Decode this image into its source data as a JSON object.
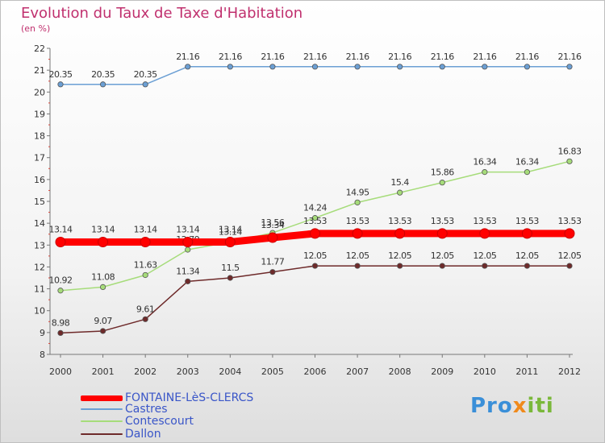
{
  "header": {
    "title": "Evolution du Taux de Taxe d'Habitation",
    "subtitle": "(en %)"
  },
  "chart_data": {
    "type": "line",
    "title": "Evolution du Taux de Taxe d'Habitation",
    "ylabel": "(en %)",
    "xlabel": "",
    "x": [
      "2000",
      "2001",
      "2002",
      "2003",
      "2004",
      "2005",
      "2006",
      "2007",
      "2008",
      "2009",
      "2010",
      "2011",
      "2012"
    ],
    "ylim": [
      8,
      22
    ],
    "yticks": [
      8,
      9,
      10,
      11,
      12,
      13,
      14,
      15,
      16,
      17,
      18,
      19,
      20,
      21,
      22
    ],
    "grid": false,
    "legend_position": "bottom-left",
    "series": [
      {
        "name": "FONTAINE-LèS-CLERCS",
        "color": "#ff0000",
        "values": [
          13.14,
          13.14,
          13.14,
          13.14,
          13.14,
          13.34,
          13.53,
          13.53,
          13.53,
          13.53,
          13.53,
          13.53,
          13.53
        ],
        "labels": [
          "13.14",
          "13.14",
          "13.14",
          "13.14",
          "13.14",
          "13.34",
          "13.53",
          "13.53",
          "13.53",
          "13.53",
          "13.53",
          "13.53",
          "13.53"
        ]
      },
      {
        "name": "Castres",
        "color": "#6b9fd4",
        "values": [
          20.35,
          20.35,
          20.35,
          21.16,
          21.16,
          21.16,
          21.16,
          21.16,
          21.16,
          21.16,
          21.16,
          21.16,
          21.16
        ],
        "labels": [
          "20.35",
          "20.35",
          "20.35",
          "21.16",
          "21.16",
          "21.16",
          "21.16",
          "21.16",
          "21.16",
          "21.16",
          "21.16",
          "21.16",
          "21.16"
        ]
      },
      {
        "name": "Contescourt",
        "color": "#a6dc7a",
        "values": [
          10.92,
          11.08,
          11.63,
          12.79,
          13.14,
          13.56,
          14.24,
          14.95,
          15.4,
          15.86,
          16.34,
          16.34,
          16.83
        ],
        "labels": [
          "10.92",
          "11.08",
          "11.63",
          "12.79",
          "13.14",
          "13.56",
          "14.24",
          "14.95",
          "15.4",
          "15.86",
          "16.34",
          "16.34",
          "16.83"
        ]
      },
      {
        "name": "Dallon",
        "color": "#6e2a2a",
        "values": [
          8.98,
          9.07,
          9.61,
          11.34,
          11.5,
          11.77,
          12.05,
          12.05,
          12.05,
          12.05,
          12.05,
          12.05,
          12.05
        ],
        "labels": [
          "8.98",
          "9.07",
          "9.61",
          "11.34",
          "11.5",
          "11.77",
          "12.05",
          "12.05",
          "12.05",
          "12.05",
          "12.05",
          "12.05",
          "12.05"
        ]
      }
    ]
  },
  "legend": {
    "items": [
      {
        "label": "FONTAINE-LèS-CLERCS",
        "color": "#ff0000",
        "text_color": "#3a56c8"
      },
      {
        "label": "Castres",
        "color": "#6b9fd4",
        "text_color": "#3a56c8"
      },
      {
        "label": "Contescourt",
        "color": "#a6dc7a",
        "text_color": "#3a56c8"
      },
      {
        "label": "Dallon",
        "color": "#6e2a2a",
        "text_color": "#3a56c8"
      }
    ]
  },
  "logo": {
    "part1": "Pro",
    "part2": "x",
    "part3": "iti"
  }
}
